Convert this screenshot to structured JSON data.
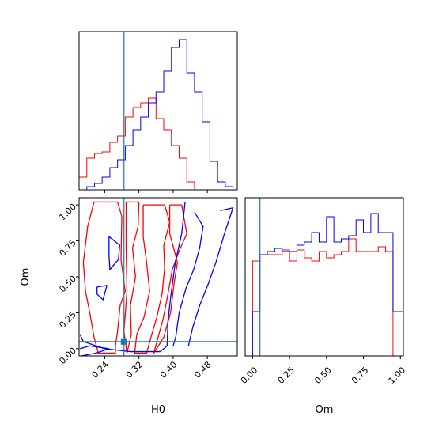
{
  "chart_data": [
    {
      "panel": "H0 marginal",
      "type": "histogram",
      "xlim": [
        0.18,
        0.55
      ],
      "truth": 0.285,
      "bin_edges": [
        0.18,
        0.198,
        0.216,
        0.234,
        0.252,
        0.27,
        0.288,
        0.306,
        0.324,
        0.342,
        0.36,
        0.378,
        0.396,
        0.414,
        0.432,
        0.45,
        0.468,
        0.486,
        0.504,
        0.522,
        0.54,
        0.55
      ],
      "series": [
        {
          "color": "#ff0000",
          "counts": [
            0.08,
            0.2,
            0.23,
            0.24,
            0.3,
            0.34,
            0.46,
            0.52,
            0.55,
            0.58,
            0.45,
            0.38,
            0.28,
            0.2,
            0.05,
            0.0,
            0.0,
            0.0,
            0.0,
            0.0,
            0.0
          ]
        },
        {
          "color": "#0000ff",
          "counts": [
            0.0,
            0.02,
            0.04,
            0.08,
            0.14,
            0.19,
            0.28,
            0.38,
            0.46,
            0.55,
            0.62,
            0.75,
            0.9,
            0.95,
            0.74,
            0.62,
            0.43,
            0.18,
            0.05,
            0.02,
            0.0
          ]
        }
      ]
    },
    {
      "panel": "Om marginal",
      "type": "histogram",
      "xlim": [
        -0.05,
        1.02
      ],
      "truth": 0.05,
      "xlabel": "Om",
      "xticks": [
        "0.00",
        "0.25",
        "0.50",
        "0.75",
        "1.00"
      ],
      "bin_edges": [
        -0.05,
        0.0,
        0.05,
        0.1,
        0.15,
        0.2,
        0.25,
        0.3,
        0.35,
        0.4,
        0.45,
        0.5,
        0.55,
        0.6,
        0.65,
        0.7,
        0.75,
        0.8,
        0.85,
        0.9,
        0.95,
        1.02
      ],
      "series": [
        {
          "color": "#ff0000",
          "counts": [
            0.0,
            0.6,
            0.64,
            0.64,
            0.64,
            0.67,
            0.6,
            0.67,
            0.62,
            0.6,
            0.66,
            0.62,
            0.64,
            0.66,
            0.74,
            0.66,
            0.66,
            0.66,
            0.69,
            0.66,
            0.0
          ]
        },
        {
          "color": "#0000ff",
          "counts": [
            0.0,
            0.28,
            0.64,
            0.66,
            0.68,
            0.66,
            0.66,
            0.7,
            0.72,
            0.78,
            0.72,
            0.88,
            0.72,
            0.74,
            0.76,
            0.86,
            0.78,
            0.9,
            0.78,
            0.78,
            0.28
          ]
        }
      ]
    },
    {
      "panel": "H0 vs Om contours",
      "type": "contour",
      "xlabel": "H0",
      "ylabel": "Om",
      "xlim": [
        0.18,
        0.55
      ],
      "ylim": [
        -0.05,
        1.05
      ],
      "xticks": [
        "0.24",
        "0.32",
        "0.40",
        "0.48"
      ],
      "yticks": [
        "0.00",
        "0.25",
        "0.50",
        "0.75",
        "1.00"
      ],
      "truth": {
        "x": 0.285,
        "y": 0.05
      },
      "series": [
        {
          "color": "#ff0000",
          "contours": [
            [
              [
                0.215,
                1.02
              ],
              [
                0.27,
                1.02
              ],
              [
                0.28,
                0.92
              ],
              [
                0.278,
                0.62
              ],
              [
                0.288,
                0.4
              ],
              [
                0.276,
                0.3
              ],
              [
                0.27,
                0.12
              ],
              [
                0.265,
                0.02
              ],
              [
                0.265,
                -0.03
              ],
              [
                0.225,
                -0.03
              ],
              [
                0.215,
                0.08
              ],
              [
                0.205,
                0.25
              ],
              [
                0.195,
                0.4
              ],
              [
                0.19,
                0.6
              ],
              [
                0.2,
                0.85
              ],
              [
                0.215,
                1.02
              ]
            ],
            [
              [
                0.29,
                1.02
              ],
              [
                0.32,
                1.02
              ],
              [
                0.318,
                0.85
              ],
              [
                0.305,
                0.7
              ],
              [
                0.312,
                0.5
              ],
              [
                0.3,
                0.3
              ],
              [
                0.302,
                0.1
              ],
              [
                0.292,
                -0.03
              ],
              [
                0.285,
                0.12
              ],
              [
                0.292,
                0.4
              ],
              [
                0.29,
                0.7
              ],
              [
                0.29,
                1.02
              ]
            ],
            [
              [
                0.33,
                1.0
              ],
              [
                0.38,
                1.0
              ],
              [
                0.392,
                0.88
              ],
              [
                0.378,
                0.72
              ],
              [
                0.38,
                0.56
              ],
              [
                0.374,
                0.38
              ],
              [
                0.362,
                0.22
              ],
              [
                0.35,
                0.1
              ],
              [
                0.338,
                -0.03
              ],
              [
                0.31,
                -0.03
              ],
              [
                0.315,
                0.1
              ],
              [
                0.332,
                0.22
              ],
              [
                0.345,
                0.4
              ],
              [
                0.338,
                0.6
              ],
              [
                0.33,
                0.78
              ],
              [
                0.33,
                1.0
              ]
            ],
            [
              [
                0.392,
                1.0
              ],
              [
                0.42,
                1.0
              ],
              [
                0.432,
                0.8
              ],
              [
                0.414,
                0.68
              ],
              [
                0.398,
                0.55
              ],
              [
                0.386,
                0.35
              ],
              [
                0.376,
                0.2
              ],
              [
                0.362,
                0.05
              ],
              [
                0.355,
                -0.03
              ],
              [
                0.378,
                0.08
              ],
              [
                0.394,
                0.25
              ],
              [
                0.402,
                0.45
              ],
              [
                0.41,
                0.6
              ],
              [
                0.392,
                0.8
              ],
              [
                0.392,
                1.0
              ]
            ]
          ]
        },
        {
          "color": "#0000ff",
          "contours": [
            [
              [
                0.428,
                1.02
              ],
              [
                0.42,
                0.8
              ],
              [
                0.405,
                0.6
              ],
              [
                0.396,
                0.4
              ],
              [
                0.388,
                0.2
              ],
              [
                0.386,
                0.02
              ],
              [
                0.37,
                -0.02
              ],
              [
                0.3,
                -0.02
              ],
              [
                0.24,
                0.0
              ],
              [
                0.19,
                0.05
              ],
              [
                0.182,
                0.1
              ]
            ],
            [
              [
                0.45,
                0.95
              ],
              [
                0.47,
                0.85
              ],
              [
                0.462,
                0.7
              ],
              [
                0.448,
                0.55
              ],
              [
                0.43,
                0.42
              ],
              [
                0.414,
                0.25
              ],
              [
                0.406,
                0.08
              ],
              [
                0.4,
                0.02
              ]
            ],
            [
              [
                0.51,
                0.96
              ],
              [
                0.54,
                0.98
              ],
              [
                0.52,
                0.8
              ],
              [
                0.5,
                0.6
              ],
              [
                0.482,
                0.45
              ],
              [
                0.462,
                0.3
              ],
              [
                0.446,
                0.15
              ],
              [
                0.438,
                0.05
              ],
              [
                0.436,
                0.02
              ]
            ],
            [
              [
                0.25,
                0.78
              ],
              [
                0.275,
                0.72
              ],
              [
                0.272,
                0.62
              ],
              [
                0.252,
                0.55
              ],
              [
                0.25,
                0.65
              ],
              [
                0.25,
                0.78
              ]
            ],
            [
              [
                0.222,
                0.43
              ],
              [
                0.245,
                0.44
              ],
              [
                0.236,
                0.34
              ],
              [
                0.222,
                0.38
              ],
              [
                0.222,
                0.43
              ]
            ],
            [
              [
                0.182,
                0.0
              ],
              [
                0.205,
                0.02
              ],
              [
                0.25,
                0.0
              ],
              [
                0.22,
                -0.03
              ],
              [
                0.185,
                -0.05
              ]
            ]
          ]
        }
      ]
    }
  ]
}
